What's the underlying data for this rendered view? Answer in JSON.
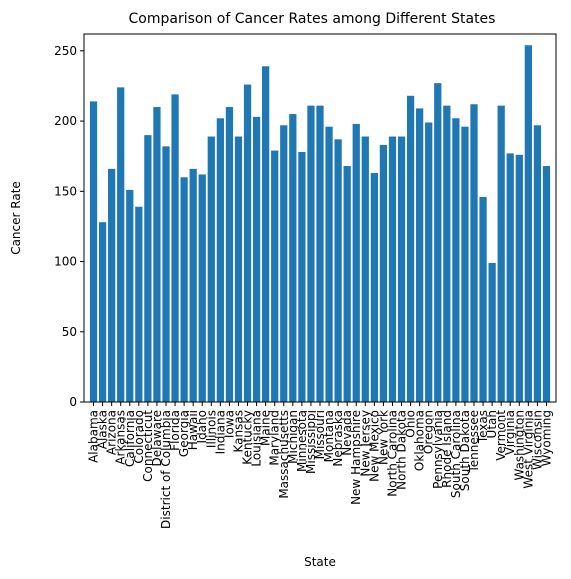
{
  "chart_data": {
    "type": "bar",
    "title": "Comparison of Cancer Rates among Different States",
    "xlabel": "State",
    "ylabel": "Cancer Rate",
    "ylim": [
      0,
      262
    ],
    "yticks": [
      0,
      50,
      100,
      150,
      200,
      250
    ],
    "grid": false,
    "bar_color": "#1f77b4",
    "categories": [
      "Alabama",
      "Alaska",
      "Arizona",
      "Arkansas",
      "California",
      "Colorado",
      "Connecticut",
      "Delaware",
      "District of Columbia",
      "Florida",
      "Georgia",
      "Hawaii",
      "Idaho",
      "Illinois",
      "Indiana",
      "Iowa",
      "Kansas",
      "Kentucky",
      "Louisiana",
      "Maine",
      "Maryland",
      "Massachusetts",
      "Michigan",
      "Minnesota",
      "Mississippi",
      "Missouri",
      "Montana",
      "Nebraska",
      "Nevada",
      "New Hampshire",
      "New Jersey",
      "New Mexico",
      "New York",
      "North Carolina",
      "North Dakota",
      "Ohio",
      "Oklahoma",
      "Oregon",
      "Pennsylvania",
      "Rhode Island",
      "South Carolina",
      "South Dakota",
      "Tennessee",
      "Texas",
      "Utah",
      "Vermont",
      "Virginia",
      "Washington",
      "West Virginia",
      "Wisconsin",
      "Wyoming"
    ],
    "values": [
      214,
      128,
      166,
      224,
      151,
      139,
      190,
      210,
      182,
      219,
      160,
      166,
      162,
      189,
      202,
      210,
      189,
      226,
      203,
      239,
      179,
      197,
      205,
      178,
      211,
      211,
      196,
      187,
      168,
      198,
      189,
      163,
      183,
      189,
      189,
      218,
      209,
      199,
      227,
      211,
      202,
      196,
      212,
      146,
      99,
      211,
      177,
      176,
      254,
      197,
      168
    ]
  }
}
